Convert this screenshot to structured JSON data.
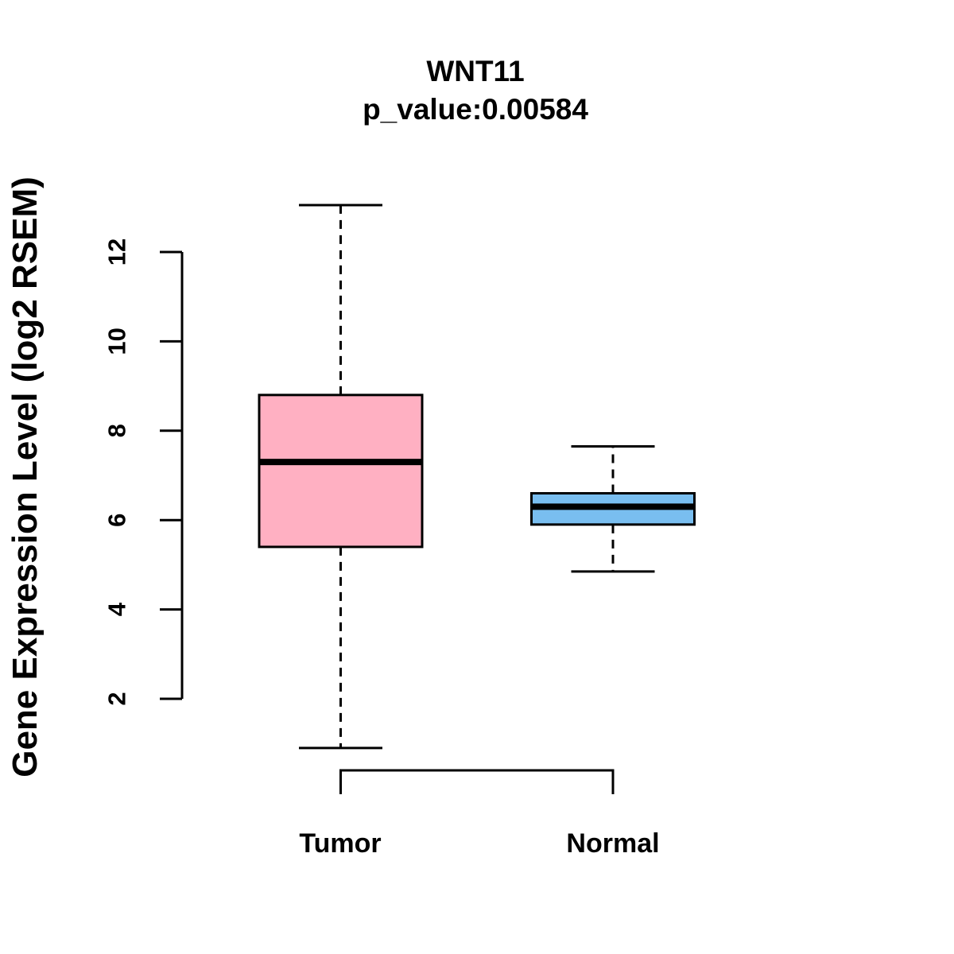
{
  "figure": {
    "background_color": "#ffffff",
    "line_color": "#000000"
  },
  "chart_data": {
    "type": "boxplot",
    "title": "WNT11",
    "subtitle": "p_value:0.00584",
    "ylabel": "Gene Expression Level (log2 RSEM)",
    "xlabel": "",
    "categories": [
      "Tumor",
      "Normal"
    ],
    "yticks": [
      2,
      4,
      6,
      8,
      10,
      12
    ],
    "ylim": [
      2,
      12
    ],
    "grid": false,
    "legend": false,
    "whisker_line_style": "dashed",
    "series": [
      {
        "name": "Tumor",
        "fill_color": "#FFB0C2",
        "lower_whisker": 0.9,
        "q1": 5.4,
        "median": 7.3,
        "q3": 8.8,
        "upper_whisker": 13.05
      },
      {
        "name": "Normal",
        "fill_color": "#79BEF0",
        "lower_whisker": 4.85,
        "q1": 5.9,
        "median": 6.3,
        "q3": 6.6,
        "upper_whisker": 7.65
      }
    ]
  }
}
